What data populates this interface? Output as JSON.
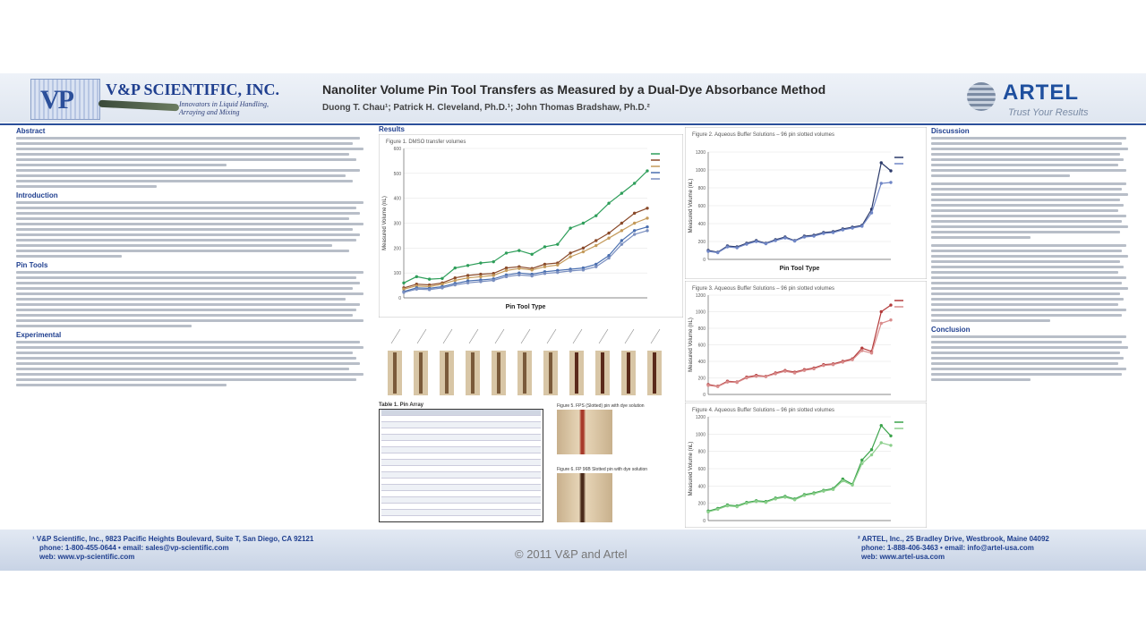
{
  "header": {
    "vp_name": "V&P SCIENTIFIC, INC.",
    "vp_tagline_1": "Innovators in Liquid Handling,",
    "vp_tagline_2": "Arraying and Mixing",
    "title": "Nanoliter Volume Pin Tool Transfers as Measured by a Dual-Dye Absorbance Method",
    "authors": "Duong T. Chau¹;  Patrick H. Cleveland, Ph.D.¹; John Thomas Bradshaw, Ph.D.²",
    "artel_name": "ARTEL",
    "artel_tagline": "Trust Your Results"
  },
  "sections": {
    "abstract": "Abstract",
    "introduction": "Introduction",
    "pin_tools": "Pin Tools",
    "experimental": "Experimental",
    "results": "Results",
    "discussion": "Discussion",
    "conclusion": "Conclusion"
  },
  "figures": {
    "fig1_caption": "Figure 1. DMSO transfer volumes",
    "fig2_caption": "Figure 2. Aqueous Buffer Solutions – 96 pin slotted volumes",
    "fig3_caption": "Figure 3. Aqueous Buffer Solutions – 96 pin slotted volumes",
    "fig4_caption": "Figure 4. Aqueous Buffer Solutions – 96 pin slotted volumes",
    "table_caption": "Table 1. Pin Array",
    "pin_photo_caption_1": "Figure 5. FPS (Slotted) pin with dye solution",
    "pin_photo_caption_2": "Figure 6. FP 96B Slotted pin with dye solution"
  },
  "footer": {
    "vp_line1": "¹ V&P Scientific, Inc., 9823 Pacific Heights Boulevard, Suite T, San Diego, CA 92121",
    "vp_line2": "phone: 1-800-455-0644  •  email: sales@vp-scientific.com",
    "vp_line3": "web: www.vp-scientific.com",
    "copyright": "© 2011 V&P and Artel",
    "artel_line1": "² ARTEL, Inc., 25 Bradley Drive, Westbrook, Maine 04092",
    "artel_line2": "phone: 1-888-406-3463  •  email: info@artel-usa.com",
    "artel_line3": "web: www.artel-usa.com"
  },
  "chart_data": [
    {
      "type": "line",
      "title": "",
      "xlabel": "Pin Tool Type",
      "ylabel": "Measured Volume (nL)",
      "ylim": [
        0,
        600
      ],
      "x": [
        1,
        2,
        3,
        4,
        5,
        6,
        7,
        8,
        9,
        10,
        11,
        12,
        13,
        14,
        15,
        16,
        17,
        18,
        19,
        20
      ],
      "series": [
        {
          "color": "#2e9e5a",
          "values": [
            60,
            85,
            75,
            78,
            120,
            130,
            140,
            145,
            180,
            190,
            175,
            205,
            215,
            280,
            300,
            330,
            380,
            420,
            460,
            510
          ]
        },
        {
          "color": "#8a4a2a",
          "values": [
            40,
            55,
            52,
            60,
            80,
            90,
            95,
            98,
            120,
            125,
            118,
            135,
            140,
            180,
            200,
            230,
            260,
            300,
            340,
            360
          ]
        },
        {
          "color": "#c49a5a",
          "values": [
            35,
            48,
            45,
            55,
            70,
            80,
            85,
            90,
            110,
            118,
            112,
            125,
            132,
            165,
            185,
            210,
            240,
            270,
            300,
            320
          ]
        },
        {
          "color": "#4a6fb0",
          "values": [
            25,
            40,
            38,
            45,
            58,
            68,
            72,
            76,
            92,
            100,
            95,
            105,
            110,
            115,
            120,
            135,
            170,
            230,
            270,
            285
          ]
        },
        {
          "color": "#7a8fc0",
          "values": [
            22,
            35,
            33,
            40,
            52,
            60,
            65,
            70,
            85,
            92,
            88,
            98,
            102,
            108,
            112,
            125,
            160,
            215,
            255,
            270
          ]
        }
      ]
    },
    {
      "type": "line",
      "xlabel": "Pin Tool Type",
      "ylabel": "Measured Volume (nL)",
      "ylim": [
        0,
        1200
      ],
      "x": [
        1,
        2,
        3,
        4,
        5,
        6,
        7,
        8,
        9,
        10,
        11,
        12,
        13,
        14,
        15,
        16,
        17,
        18,
        19,
        20
      ],
      "series": [
        {
          "color": "#2b3a6a",
          "values": [
            100,
            80,
            150,
            140,
            180,
            210,
            180,
            220,
            250,
            210,
            260,
            270,
            300,
            310,
            340,
            360,
            380,
            560,
            1080,
            990
          ]
        },
        {
          "color": "#6f86c6",
          "values": [
            90,
            75,
            140,
            130,
            170,
            200,
            175,
            210,
            240,
            205,
            250,
            260,
            290,
            300,
            330,
            350,
            370,
            520,
            850,
            860
          ]
        }
      ]
    },
    {
      "type": "line",
      "xlabel": "",
      "ylabel": "Measured Volume (nL)",
      "ylim": [
        0,
        1200
      ],
      "x": [
        1,
        2,
        3,
        4,
        5,
        6,
        7,
        8,
        9,
        10,
        11,
        12,
        13,
        14,
        15,
        16,
        17,
        18,
        19,
        20
      ],
      "series": [
        {
          "color": "#b33a3a",
          "values": [
            120,
            100,
            160,
            150,
            210,
            230,
            220,
            260,
            290,
            270,
            300,
            320,
            360,
            370,
            400,
            430,
            560,
            520,
            1000,
            1080
          ]
        },
        {
          "color": "#d98c8c",
          "values": [
            110,
            95,
            150,
            145,
            200,
            220,
            215,
            250,
            280,
            260,
            290,
            310,
            350,
            360,
            390,
            420,
            530,
            500,
            860,
            900
          ]
        }
      ]
    },
    {
      "type": "line",
      "xlabel": "",
      "ylabel": "Measured Volume (nL)",
      "ylim": [
        0,
        1200
      ],
      "x": [
        1,
        2,
        3,
        4,
        5,
        6,
        7,
        8,
        9,
        10,
        11,
        12,
        13,
        14,
        15,
        16,
        17,
        18,
        19,
        20
      ],
      "series": [
        {
          "color": "#3aa34a",
          "values": [
            110,
            140,
            180,
            170,
            210,
            230,
            220,
            260,
            280,
            250,
            300,
            320,
            350,
            370,
            480,
            420,
            700,
            820,
            1100,
            980
          ]
        },
        {
          "color": "#8ccf8c",
          "values": [
            100,
            130,
            170,
            160,
            200,
            220,
            210,
            250,
            270,
            240,
            290,
            310,
            340,
            360,
            460,
            410,
            660,
            760,
            900,
            870
          ]
        }
      ]
    }
  ]
}
